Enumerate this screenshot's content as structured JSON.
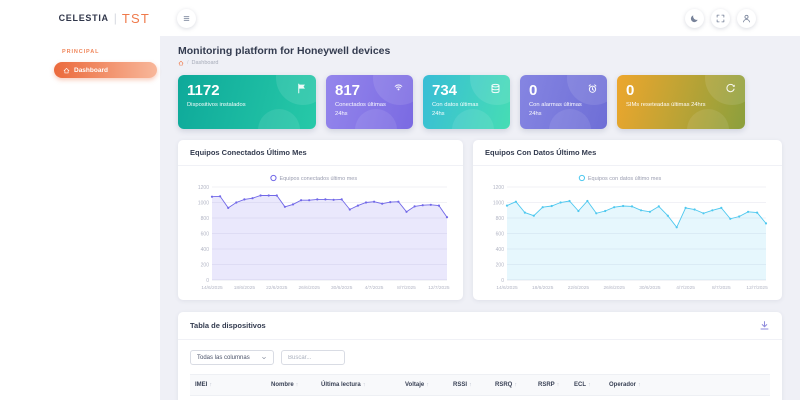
{
  "app": {
    "logo_primary": "CELESTIA",
    "logo_separator": "|",
    "logo_secondary": "TST"
  },
  "sidebar": {
    "section_label": "PRINCIPAL",
    "items": [
      {
        "label": "Dashboard",
        "icon": "home",
        "active": true
      }
    ]
  },
  "header": {
    "menu_icon": "menu",
    "buttons": [
      {
        "icon": "moon",
        "name": "dark-mode-button"
      },
      {
        "icon": "fullscreen",
        "name": "fullscreen-button"
      },
      {
        "icon": "user",
        "name": "user-button"
      }
    ]
  },
  "page": {
    "title": "Monitoring platform for Honeywell devices",
    "breadcrumb": {
      "home_icon": "home",
      "separator": "/",
      "current": "Dashboard"
    }
  },
  "stats": [
    {
      "value": "1172",
      "label": "Dispositivos instalados",
      "icon": "flag",
      "gradient": [
        "#0ea99a",
        "#27c9a8"
      ]
    },
    {
      "value": "817",
      "label": "Conectados últimas 24hs",
      "icon": "broadcast",
      "gradient": [
        "#9486ec",
        "#7a6ae2"
      ]
    },
    {
      "value": "734",
      "label": "Con datos últimas 24hs",
      "icon": "database",
      "gradient": [
        "#38bdd6",
        "#46ddb4"
      ]
    },
    {
      "value": "0",
      "label": "Con alarmas últimas 24hs",
      "icon": "alarm",
      "gradient": [
        "#8585e2",
        "#6e6ed6"
      ]
    },
    {
      "value": "0",
      "label": "SIMs reseteadas últimas 24hrs",
      "icon": "refresh",
      "gradient": [
        "#eda62d",
        "#8ba03d"
      ]
    }
  ],
  "chart_data": [
    {
      "type": "area",
      "title": "Equipos Conectados Último Mes",
      "legend": "Equipos conectados último mes",
      "line_color": "#7168e8",
      "fill_color": "rgba(113,104,232,0.15)",
      "ylim": [
        0,
        1200
      ],
      "ytick_step": 200,
      "grid": true,
      "legend_position": "top",
      "x_tick_labels": [
        "14/6/2025",
        "18/6/2025",
        "22/6/2025",
        "26/6/2025",
        "30/6/2025",
        "4/7/2025",
        "8/7/2025",
        "12/7/2025"
      ],
      "x_tick_every": 4,
      "values": [
        1075,
        1080,
        930,
        1000,
        1040,
        1055,
        1090,
        1090,
        1090,
        945,
        975,
        1030,
        1030,
        1040,
        1040,
        1035,
        1040,
        910,
        960,
        1000,
        1010,
        985,
        1005,
        1010,
        880,
        950,
        965,
        970,
        960,
        810
      ]
    },
    {
      "type": "area",
      "title": "Equipos Con Datos Último Mes",
      "legend": "Equipos con datos último mes",
      "line_color": "#4ec8ef",
      "fill_color": "rgba(78,200,239,0.14)",
      "ylim": [
        0,
        1200
      ],
      "ytick_step": 200,
      "grid": true,
      "legend_position": "top",
      "x_tick_labels": [
        "14/6/2025",
        "18/6/2025",
        "22/6/2025",
        "26/6/2025",
        "30/6/2025",
        "4/7/2025",
        "8/7/2025",
        "12/7/2025"
      ],
      "x_tick_every": 4,
      "values": [
        960,
        1010,
        870,
        830,
        940,
        955,
        1000,
        1020,
        890,
        1020,
        860,
        890,
        940,
        955,
        950,
        900,
        880,
        950,
        830,
        680,
        930,
        910,
        860,
        900,
        930,
        790,
        820,
        880,
        870,
        730
      ]
    }
  ],
  "table": {
    "title": "Tabla de dispositivos",
    "download_icon": "download",
    "columns_select_value": "Todas las columnas",
    "search_placeholder": "Buscar...",
    "headers": [
      "IMEI",
      "Nombre",
      "Última lectura",
      "Voltaje",
      "RSSI",
      "RSRQ",
      "RSRP",
      "ECL",
      "Operador"
    ]
  },
  "colors": {
    "accent_orange": "#ee6f41",
    "background": "#eff0f6",
    "chart1_line": "#7168e8",
    "chart2_line": "#4ec8ef"
  }
}
